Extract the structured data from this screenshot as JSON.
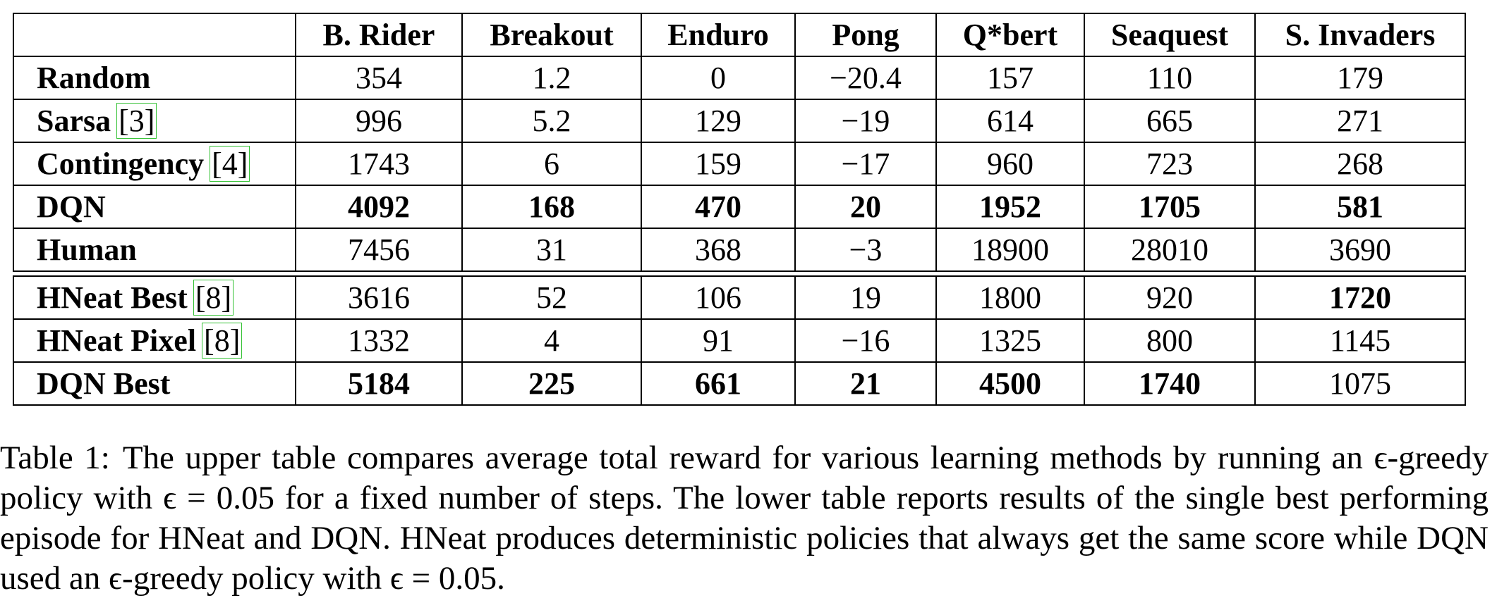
{
  "table": {
    "columns": [
      "B. Rider",
      "Breakout",
      "Enduro",
      "Pong",
      "Q*bert",
      "Seaquest",
      "S. Invaders"
    ],
    "upper_rows": [
      {
        "method": "Random",
        "ref": "",
        "values": [
          "354",
          "1.2",
          "0",
          "−20.4",
          "157",
          "110",
          "179"
        ],
        "bold": [
          false,
          false,
          false,
          false,
          false,
          false,
          false
        ]
      },
      {
        "method": "Sarsa",
        "ref": "3",
        "values": [
          "996",
          "5.2",
          "129",
          "−19",
          "614",
          "665",
          "271"
        ],
        "bold": [
          false,
          false,
          false,
          false,
          false,
          false,
          false
        ]
      },
      {
        "method": "Contingency",
        "ref": "4",
        "values": [
          "1743",
          "6",
          "159",
          "−17",
          "960",
          "723",
          "268"
        ],
        "bold": [
          false,
          false,
          false,
          false,
          false,
          false,
          false
        ]
      },
      {
        "method": "DQN",
        "ref": "",
        "values": [
          "4092",
          "168",
          "470",
          "20",
          "1952",
          "1705",
          "581"
        ],
        "bold": [
          true,
          true,
          true,
          true,
          true,
          true,
          true
        ]
      },
      {
        "method": "Human",
        "ref": "",
        "values": [
          "7456",
          "31",
          "368",
          "−3",
          "18900",
          "28010",
          "3690"
        ],
        "bold": [
          false,
          false,
          false,
          false,
          false,
          false,
          false
        ]
      }
    ],
    "lower_rows": [
      {
        "method": "HNeat Best",
        "ref": "8",
        "values": [
          "3616",
          "52",
          "106",
          "19",
          "1800",
          "920",
          "1720"
        ],
        "bold": [
          false,
          false,
          false,
          false,
          false,
          false,
          true
        ]
      },
      {
        "method": "HNeat Pixel",
        "ref": "8",
        "values": [
          "1332",
          "4",
          "91",
          "−16",
          "1325",
          "800",
          "1145"
        ],
        "bold": [
          false,
          false,
          false,
          false,
          false,
          false,
          false
        ]
      },
      {
        "method": "DQN Best",
        "ref": "",
        "values": [
          "5184",
          "225",
          "661",
          "21",
          "4500",
          "1740",
          "1075"
        ],
        "bold": [
          true,
          true,
          true,
          true,
          true,
          true,
          false
        ]
      }
    ]
  },
  "caption": {
    "label": "Table 1:",
    "text": "The upper table compares average total reward for various learning methods by running an ϵ-greedy policy with ϵ = 0.05 for a fixed number of steps. The lower table reports results of the single best performing episode for HNeat and DQN. HNeat produces deterministic policies that always get the same score while DQN used an ϵ-greedy policy with ϵ = 0.05."
  },
  "colors": {
    "text": "#000000",
    "border": "#000000",
    "citation_box": "#35c235"
  }
}
